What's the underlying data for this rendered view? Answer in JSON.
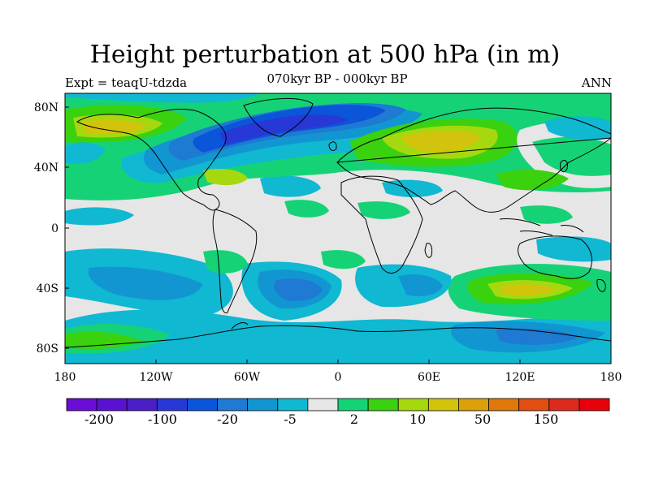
{
  "header": {
    "title": "Height perturbation at 500 hPa (in m)",
    "subtitle": "070kyr BP - 000kyr BP",
    "left_label": "Expt = teaqU-tdzda",
    "right_label": "ANN"
  },
  "map": {
    "lon_ticks": [
      "180",
      "120W",
      "60W",
      "0",
      "60E",
      "120E",
      "180"
    ],
    "lat_ticks": [
      "80N",
      "40N",
      "0",
      "40S",
      "80S"
    ],
    "lon_range": [
      -180,
      180
    ],
    "lat_range": [
      -90,
      90
    ],
    "background_color": "#e6e6e6"
  },
  "colorbar": {
    "colors": [
      "#6a0dd6",
      "#5a12d0",
      "#4b1ec6",
      "#2838d6",
      "#0a55d8",
      "#1e7ad2",
      "#1296d2",
      "#10b8d2",
      "#e6e6e6",
      "#16d276",
      "#3ad10e",
      "#a6d810",
      "#d2c40c",
      "#dca00c",
      "#e0780c",
      "#e04e14",
      "#dc2a1e",
      "#e6000a"
    ],
    "labels": [
      "-200",
      "-100",
      "-20",
      "-5",
      "2",
      "10",
      "50",
      "150"
    ]
  },
  "chart_data": {
    "type": "heatmap",
    "title": "Height perturbation at 500 hPa (in m)",
    "subtitle": "070kyr BP - 000kyr BP",
    "xlabel": "",
    "ylabel": "",
    "x_ticks": [
      "180",
      "120W",
      "60W",
      "0",
      "60E",
      "120E",
      "180"
    ],
    "y_ticks": [
      "80N",
      "40N",
      "0",
      "40S",
      "80S"
    ],
    "xlim": [
      -180,
      180
    ],
    "ylim": [
      -90,
      90
    ],
    "colorbar_labels": [
      "-200",
      "-100",
      "-20",
      "-5",
      "2",
      "10",
      "50",
      "150"
    ],
    "regions": [
      {
        "lon": -80,
        "lat": 60,
        "value": -30
      },
      {
        "lon": -35,
        "lat": 72,
        "value": -35
      },
      {
        "lon": 70,
        "lat": 55,
        "value": 30
      },
      {
        "lon": -150,
        "lat": 62,
        "value": 20
      },
      {
        "lon": 145,
        "lat": 50,
        "value": 15
      },
      {
        "lon": 165,
        "lat": 62,
        "value": -5
      },
      {
        "lon": -90,
        "lat": 35,
        "value": 10
      },
      {
        "lon": -55,
        "lat": -45,
        "value": -20
      },
      {
        "lon": 95,
        "lat": -43,
        "value": 25
      },
      {
        "lon": 110,
        "lat": -72,
        "value": -15
      },
      {
        "lon": -160,
        "lat": -75,
        "value": 15
      },
      {
        "lon": -130,
        "lat": -30,
        "value": -8
      },
      {
        "lon": 40,
        "lat": -40,
        "value": -10
      },
      {
        "lon": 10,
        "lat": -25,
        "value": 5
      }
    ]
  }
}
